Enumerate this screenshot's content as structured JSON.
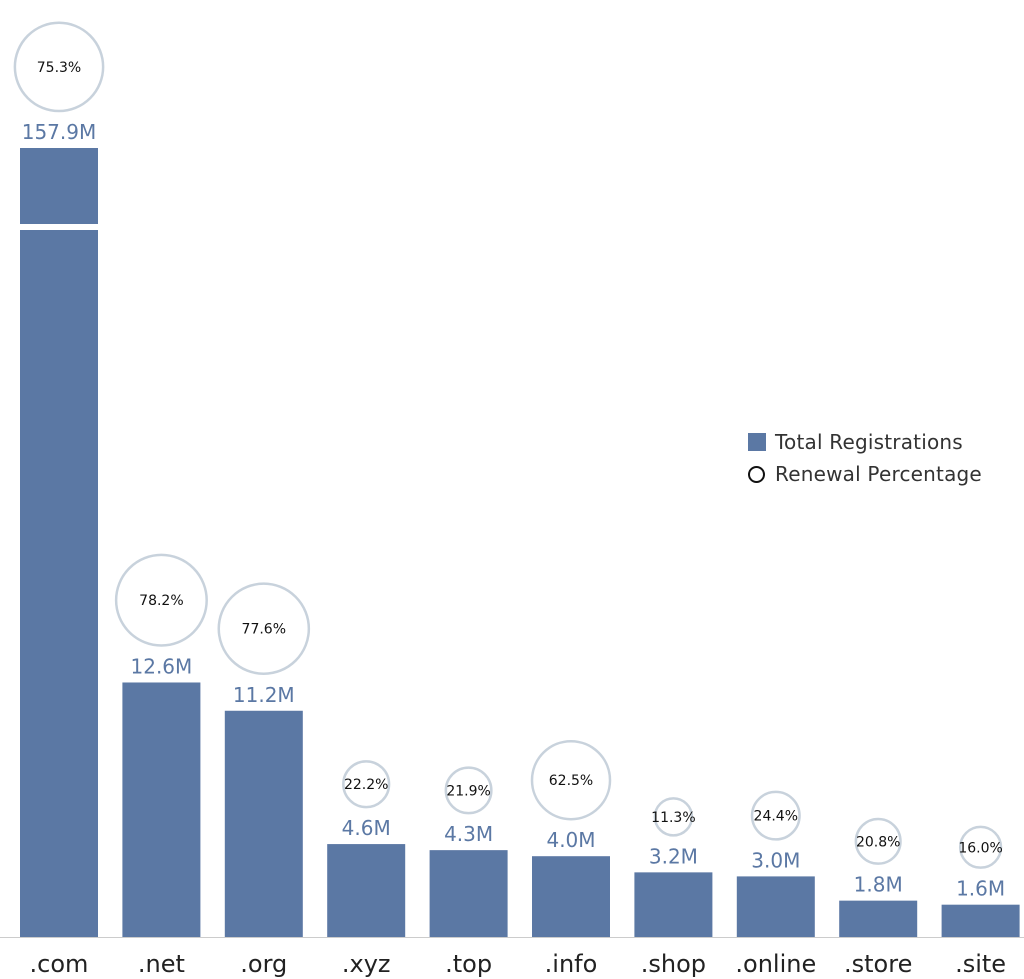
{
  "chart_data": {
    "type": "bar",
    "categories": [
      ".com",
      ".net",
      ".org",
      ".xyz",
      ".top",
      ".info",
      ".shop",
      ".online",
      ".store",
      ".site"
    ],
    "series": [
      {
        "name": "Total Registrations",
        "values": [
          157.9,
          12.6,
          11.2,
          4.6,
          4.3,
          4.0,
          3.2,
          3.0,
          1.8,
          1.6
        ],
        "labels": [
          "157.9M",
          "12.6M",
          "11.2M",
          "4.6M",
          "4.3M",
          "4.0M",
          "3.2M",
          "3.0M",
          "1.8M",
          "1.6M"
        ],
        "color": "#5b78a4"
      },
      {
        "name": "Renewal Percentage",
        "values": [
          75.3,
          78.2,
          77.6,
          22.2,
          21.9,
          62.5,
          11.3,
          24.4,
          20.8,
          16.0
        ],
        "labels": [
          "75.3%",
          "78.2%",
          "77.6%",
          "22.2%",
          "21.9%",
          "62.5%",
          "11.3%",
          "24.4%",
          "20.8%",
          "16.0%"
        ],
        "marker": "circle"
      }
    ],
    "axis_break": true,
    "grid": false,
    "legend_position": "right",
    "colors": {
      "bar": "#5b78a4",
      "bar_label": "#5b78a4",
      "circle_stroke": "#c8d2dc",
      "tick_label": "#222222"
    }
  },
  "legend": {
    "items": [
      {
        "label": "Total Registrations"
      },
      {
        "label": "Renewal Percentage"
      }
    ]
  }
}
